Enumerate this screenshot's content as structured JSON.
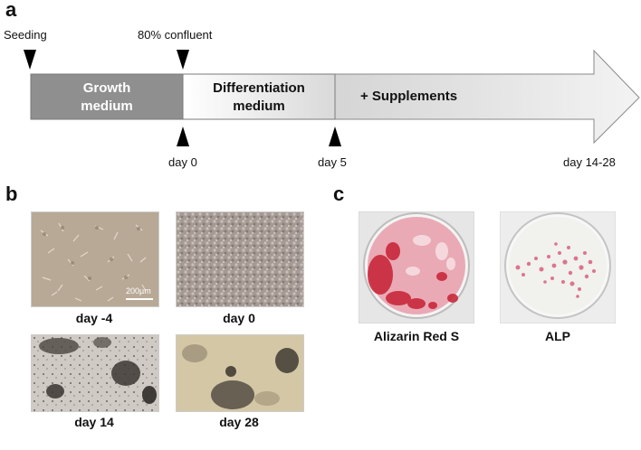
{
  "panel_a": {
    "letter": "a",
    "markers_top": [
      "Seeding",
      "80% confluent"
    ],
    "markers_bottom": [
      "day 0",
      "day 5",
      "day 14-28"
    ],
    "segments": {
      "growth": [
        "Growth",
        "medium"
      ],
      "differentiation": [
        "Differentiation",
        "medium"
      ],
      "supplements": "+ Supplements"
    }
  },
  "panel_b": {
    "letter": "b",
    "scale_bar": "200µm",
    "images": [
      {
        "caption": "day -4"
      },
      {
        "caption": "day 0"
      },
      {
        "caption": "day 14"
      },
      {
        "caption": "day 28"
      }
    ]
  },
  "panel_c": {
    "letter": "c",
    "images": [
      {
        "caption": "Alizarin Red S"
      },
      {
        "caption": "ALP"
      }
    ]
  },
  "colors": {
    "growth_fill": "#8f8f8f",
    "arrow_dark": "#bdbdbd",
    "arrow_light": "#eeeeee",
    "alizarin_red": "#c8283a",
    "alp_pink": "#d9607a"
  }
}
